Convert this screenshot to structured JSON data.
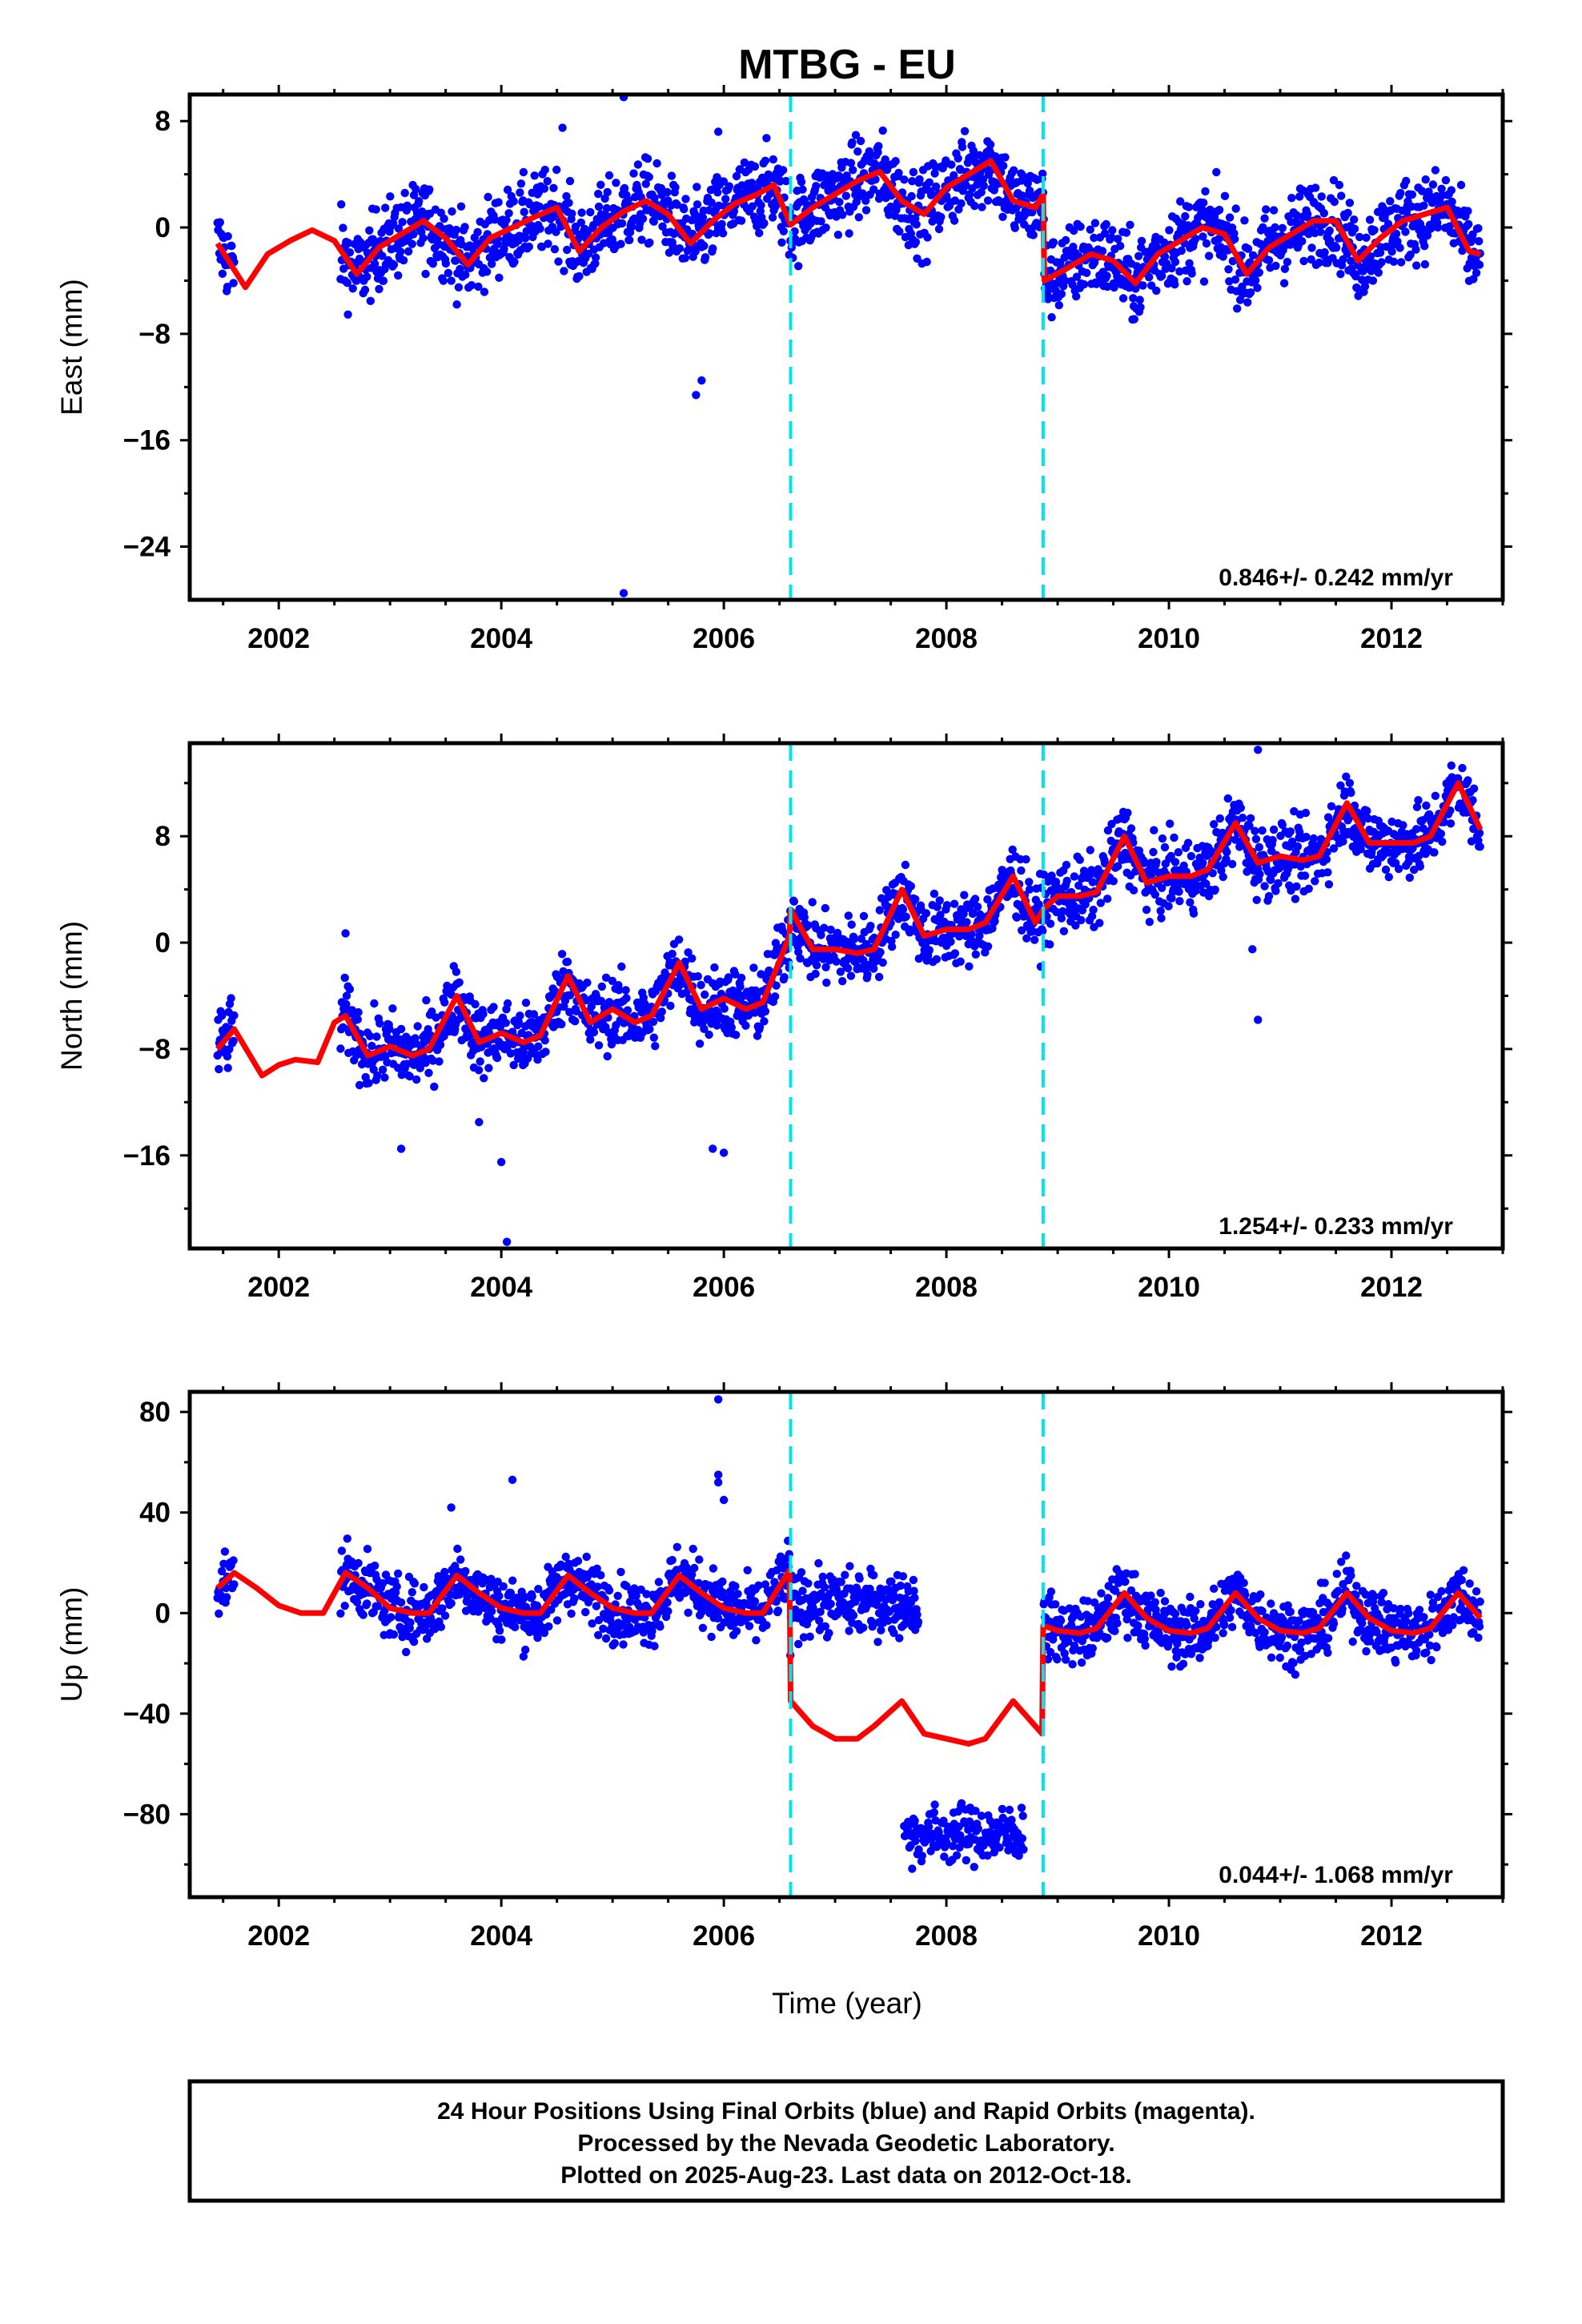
{
  "chart_data": {
    "type": "scatter",
    "title": "MTBG - EU",
    "xlabel": "Time (year)",
    "x_ticks": [
      "2002",
      "2004",
      "2006",
      "2008",
      "2010",
      "2012"
    ],
    "xlim": [
      2001.2,
      2013.0
    ],
    "offsets": [
      2006.6,
      2008.87
    ],
    "colors": {
      "points": "#0000ff",
      "model": "#ff0000",
      "offset_lines": "#00e5ee",
      "frame": "#000000"
    },
    "panels": [
      {
        "name": "east",
        "ylabel": "East (mm)",
        "ylim": [
          -28,
          10
        ],
        "y_ticks": [
          "8",
          "0",
          "−8",
          "−16",
          "−24"
        ],
        "rate": "0.846+/- 0.242 mm/yr",
        "model": {
          "x": [
            2001.45,
            2001.7,
            2001.9,
            2002.1,
            2002.3,
            2002.5,
            2002.7,
            2002.9,
            2003.1,
            2003.3,
            2003.5,
            2003.7,
            2003.9,
            2004.1,
            2004.3,
            2004.5,
            2004.7,
            2004.9,
            2005.1,
            2005.3,
            2005.5,
            2005.7,
            2005.9,
            2006.1,
            2006.3,
            2006.45,
            2006.6,
            2006.8,
            2007.0,
            2007.2,
            2007.4,
            2007.6,
            2007.8,
            2008.0,
            2008.2,
            2008.4,
            2008.6,
            2008.8,
            2008.87,
            2008.88,
            2009.1,
            2009.3,
            2009.5,
            2009.7,
            2009.9,
            2010.1,
            2010.3,
            2010.5,
            2010.7,
            2010.9,
            2011.1,
            2011.3,
            2011.5,
            2011.7,
            2011.9,
            2012.1,
            2012.3,
            2012.5,
            2012.7,
            2012.8
          ],
          "y": [
            -1.2,
            -4.5,
            -2.0,
            -1.0,
            -0.2,
            -1.0,
            -3.5,
            -1.5,
            -0.5,
            0.5,
            -0.8,
            -2.8,
            -0.8,
            0.0,
            0.8,
            1.5,
            -1.8,
            0.0,
            1.2,
            2.0,
            1.0,
            -1.2,
            0.5,
            1.8,
            2.5,
            3.2,
            0.2,
            1.5,
            2.5,
            3.5,
            4.2,
            2.0,
            1.0,
            3.0,
            4.0,
            5.0,
            2.0,
            1.5,
            2.5,
            -4.0,
            -3.0,
            -2.0,
            -2.5,
            -4.2,
            -2.0,
            -1.0,
            0.0,
            -0.5,
            -3.5,
            -1.5,
            -0.5,
            0.5,
            0.5,
            -2.5,
            -0.8,
            0.5,
            1.0,
            1.5,
            -1.8,
            -2.0
          ]
        },
        "scatter": {
          "noise": 2.2,
          "outliers": [
            [
              2005.1,
              9.8
            ],
            [
              2005.8,
              -11.5
            ],
            [
              2005.75,
              -12.6
            ],
            [
              2005.1,
              -27.5
            ],
            [
              2004.55,
              7.5
            ],
            [
              2005.95,
              7.2
            ]
          ]
        }
      },
      {
        "name": "north",
        "ylabel": "North (mm)",
        "ylim": [
          -23,
          15
        ],
        "y_ticks": [
          "8",
          "0",
          "−8",
          "−16"
        ],
        "rate": "1.254+/- 0.233 mm/yr",
        "model": {
          "x": [
            2001.45,
            2001.6,
            2001.85,
            2002.0,
            2002.15,
            2002.35,
            2002.5,
            2002.6,
            2002.8,
            2003.0,
            2003.2,
            2003.35,
            2003.6,
            2003.8,
            2004.0,
            2004.2,
            2004.35,
            2004.6,
            2004.8,
            2005.0,
            2005.2,
            2005.35,
            2005.6,
            2005.8,
            2006.0,
            2006.2,
            2006.35,
            2006.59,
            2006.6,
            2006.8,
            2007.0,
            2007.2,
            2007.35,
            2007.6,
            2007.8,
            2008.0,
            2008.2,
            2008.35,
            2008.6,
            2008.8,
            2008.87,
            2009.0,
            2009.2,
            2009.35,
            2009.6,
            2009.8,
            2010.0,
            2010.2,
            2010.35,
            2010.6,
            2010.8,
            2011.0,
            2011.2,
            2011.35,
            2011.6,
            2011.8,
            2012.0,
            2012.2,
            2012.35,
            2012.6,
            2012.8
          ],
          "y": [
            -8.0,
            -6.5,
            -10.0,
            -9.2,
            -8.8,
            -9.0,
            -6.0,
            -5.5,
            -8.5,
            -7.8,
            -8.5,
            -8.0,
            -4.0,
            -7.5,
            -6.8,
            -7.5,
            -7.0,
            -2.5,
            -6.0,
            -5.0,
            -6.0,
            -5.5,
            -1.5,
            -5.0,
            -4.2,
            -5.0,
            -4.5,
            0.5,
            2.5,
            -0.5,
            -0.5,
            -0.8,
            -0.5,
            4.0,
            0.5,
            1.0,
            1.0,
            1.5,
            5.0,
            1.5,
            2.5,
            3.5,
            3.5,
            3.8,
            8.0,
            4.5,
            5.0,
            5.0,
            5.5,
            9.0,
            6.0,
            6.5,
            6.2,
            6.5,
            10.5,
            7.5,
            7.5,
            7.5,
            8.0,
            12.0,
            8.5
          ]
        },
        "scatter": {
          "noise": 1.9,
          "outliers": [
            [
              2002.6,
              0.7
            ],
            [
              2003.1,
              -15.5
            ],
            [
              2003.8,
              -13.5
            ],
            [
              2004.0,
              -16.5
            ],
            [
              2004.05,
              -22.5
            ],
            [
              2005.9,
              -15.5
            ],
            [
              2006.0,
              -15.8
            ],
            [
              2010.8,
              14.5
            ],
            [
              2010.8,
              -5.8
            ],
            [
              2010.75,
              -0.5
            ]
          ]
        }
      },
      {
        "name": "up",
        "ylabel": "Up (mm)",
        "ylim": [
          -113,
          88
        ],
        "y_ticks": [
          "80",
          "40",
          "0",
          "−40",
          "−80"
        ],
        "rate": "0.044+/- 1.068 mm/yr",
        "model": {
          "x": [
            2001.45,
            2001.6,
            2001.8,
            2002.0,
            2002.2,
            2002.4,
            2002.6,
            2002.8,
            2003.0,
            2003.2,
            2003.35,
            2003.6,
            2003.8,
            2004.0,
            2004.2,
            2004.35,
            2004.6,
            2004.8,
            2005.0,
            2005.2,
            2005.35,
            2005.6,
            2005.8,
            2006.0,
            2006.2,
            2006.35,
            2006.59,
            2006.6,
            2006.8,
            2007.0,
            2007.2,
            2007.35,
            2007.6,
            2007.8,
            2008.0,
            2008.2,
            2008.35,
            2008.6,
            2008.8,
            2008.86,
            2008.87,
            2009.0,
            2009.2,
            2009.35,
            2009.6,
            2009.8,
            2010.0,
            2010.2,
            2010.35,
            2010.6,
            2010.8,
            2011.0,
            2011.2,
            2011.35,
            2011.6,
            2011.8,
            2012.0,
            2012.2,
            2012.35,
            2012.6,
            2012.8
          ],
          "y": [
            10,
            16,
            10,
            3,
            0,
            0,
            16,
            10,
            2,
            0,
            0,
            15,
            8,
            2,
            0,
            0,
            15,
            8,
            2,
            0,
            0,
            15,
            8,
            2,
            0,
            0,
            17,
            -35,
            -45,
            -50,
            -50,
            -45,
            -35,
            -48,
            -50,
            -52,
            -50,
            -35,
            -45,
            -48,
            -5,
            -7,
            -8,
            -6,
            8,
            -2,
            -7,
            -8,
            -6,
            8,
            -2,
            -7,
            -8,
            -6,
            8,
            -2,
            -7,
            -8,
            -6,
            8,
            -2
          ]
        },
        "scatter": {
          "noise": 9.0,
          "gaps": [
            [
              2007.75,
              2007.9
            ],
            [
              2008.75,
              2008.87
            ]
          ],
          "outliers": [
            [
              2005.95,
              85
            ],
            [
              2005.95,
              55
            ],
            [
              2005.95,
              52
            ],
            [
              2004.1,
              53
            ],
            [
              2006.0,
              45
            ],
            [
              2003.55,
              42
            ]
          ],
          "cluster": {
            "x0": 2007.62,
            "x1": 2008.7,
            "y": -88,
            "noise": 8
          }
        }
      }
    ],
    "footer": [
      "24 Hour Positions Using Final Orbits (blue) and Rapid Orbits (magenta).",
      "Processed by the Nevada Geodetic Laboratory.",
      "Plotted on 2025-Aug-23. Last data on 2012-Oct-18."
    ]
  }
}
